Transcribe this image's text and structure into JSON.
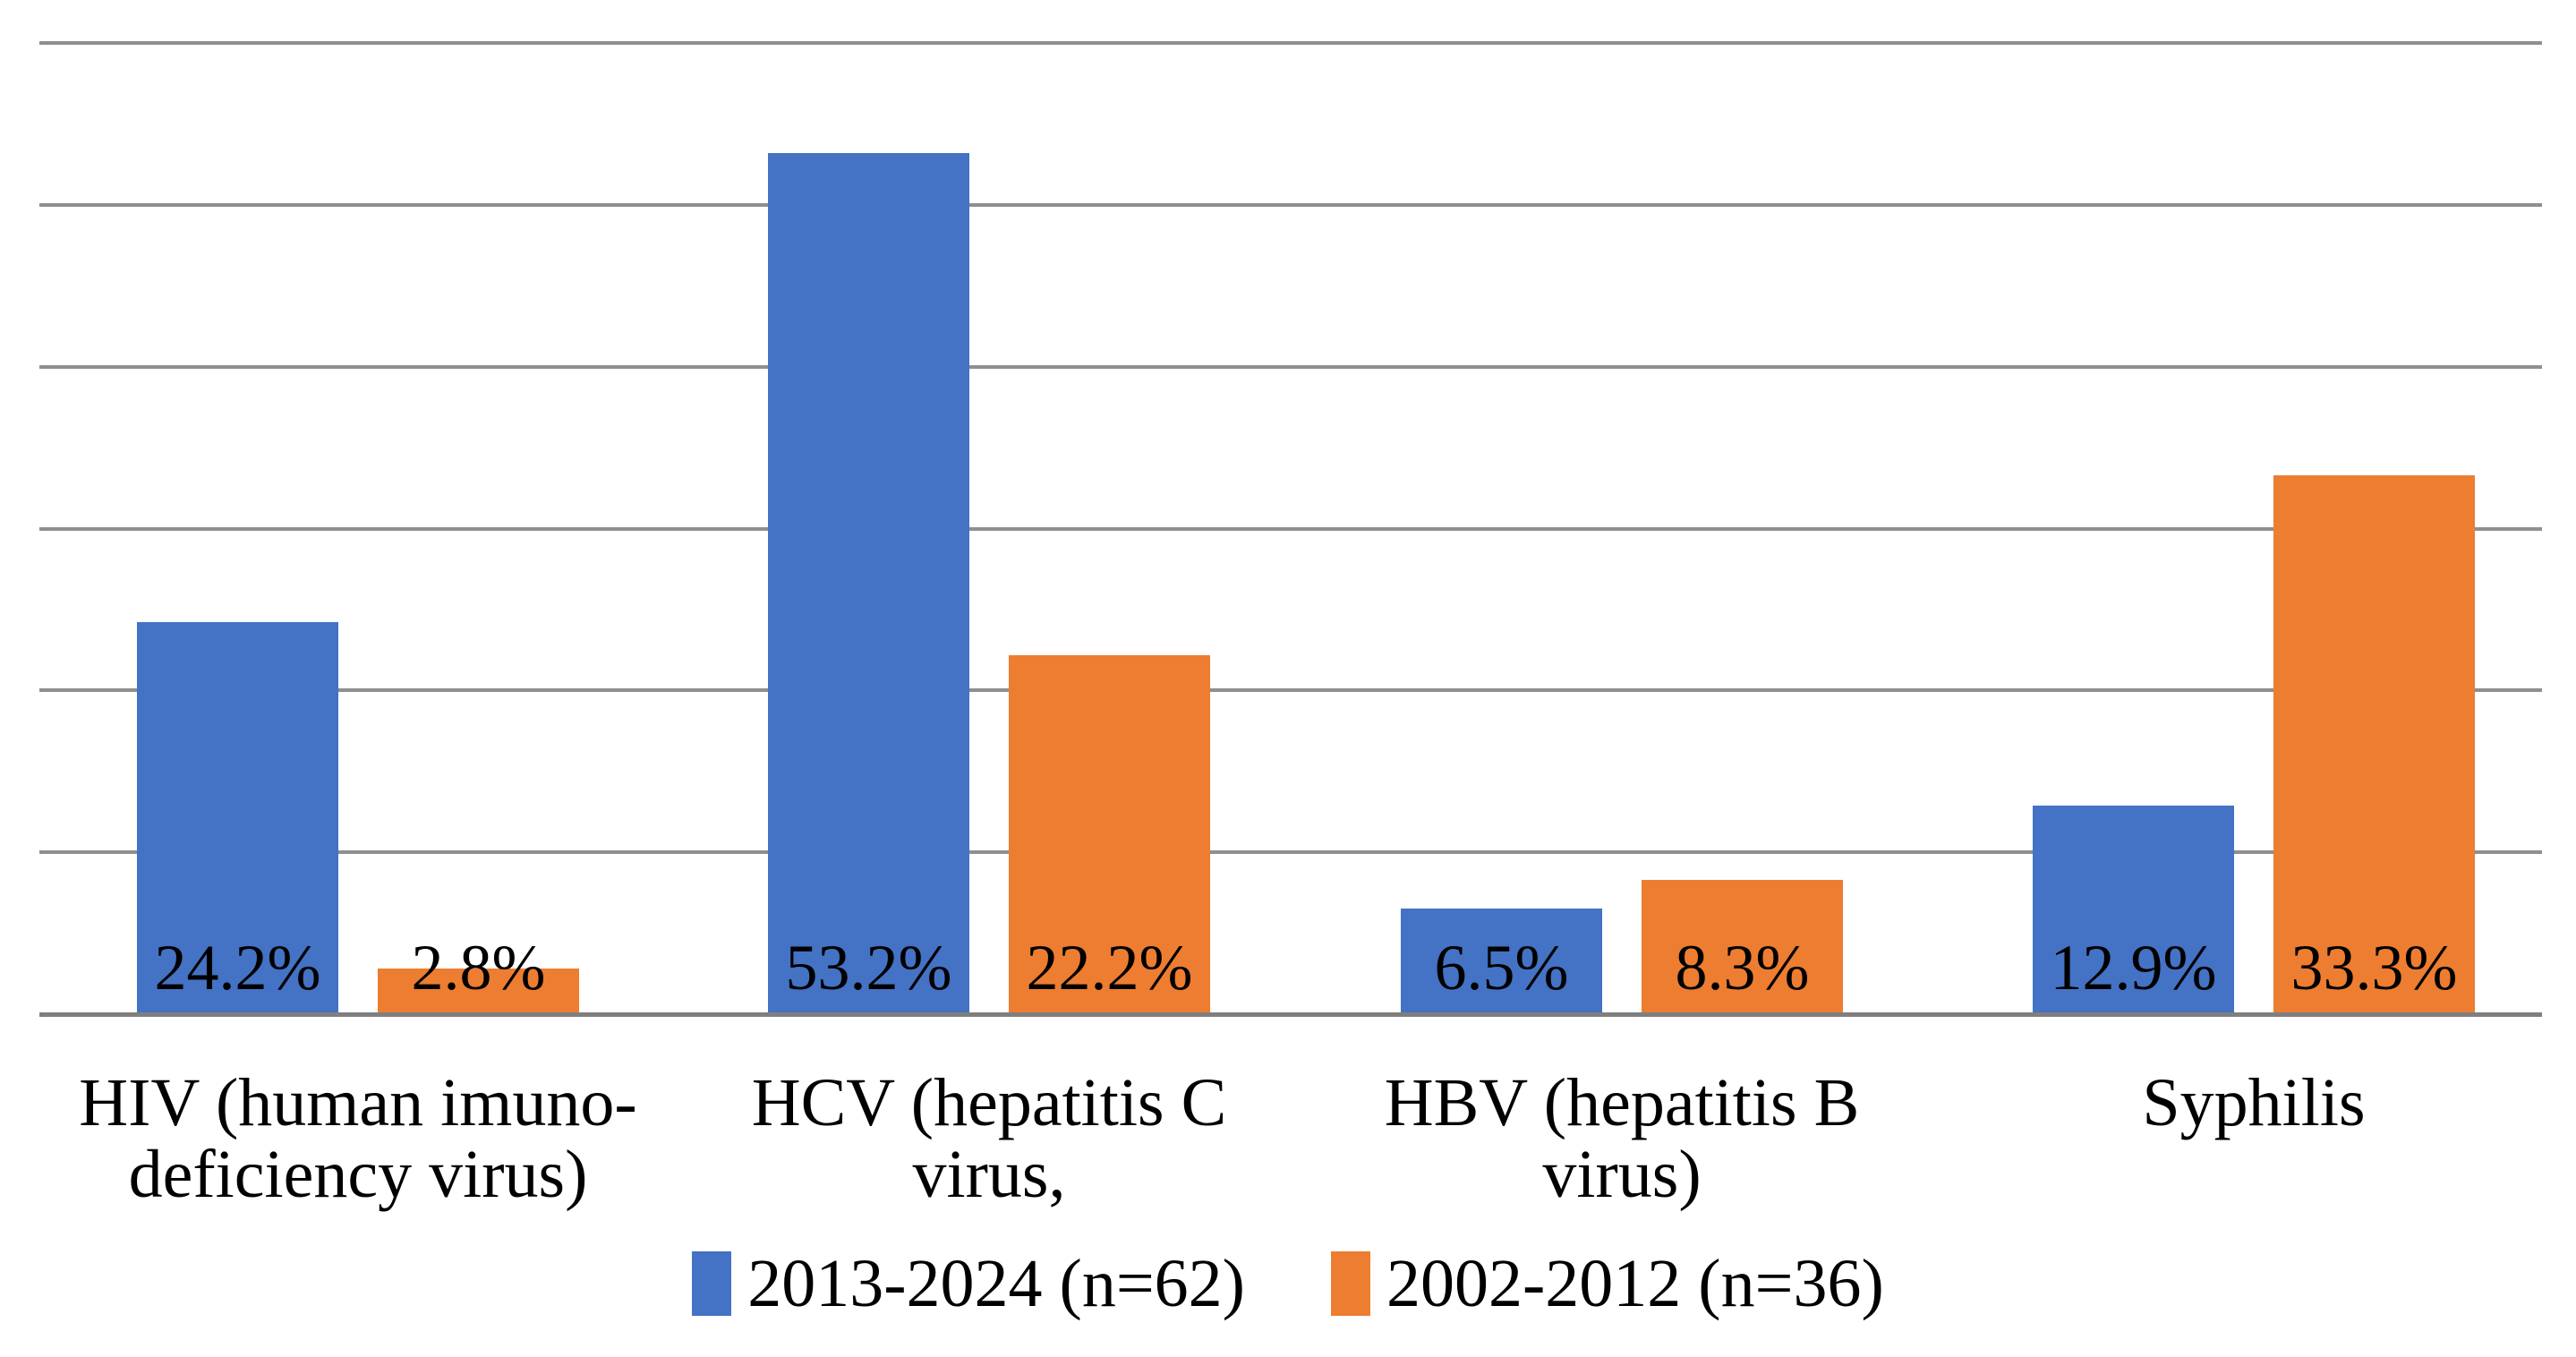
{
  "chart_data": {
    "type": "bar",
    "title": "",
    "categories": [
      "HIV (human imuno-deficiency virus)",
      "HCV (hepatitis C virus,",
      "HBV (hepatitis B virus)",
      "Syphilis"
    ],
    "category_label_lines": [
      [
        "HIV (human imuno-",
        "deficiency virus)"
      ],
      [
        "HCV (hepatitis C",
        "virus,"
      ],
      [
        "HBV (hepatitis B",
        "virus)"
      ],
      [
        "Syphilis"
      ]
    ],
    "series": [
      {
        "name": "2013-2024 (n=62)",
        "color": "#4472C4",
        "values": [
          24.2,
          53.2,
          6.5,
          12.9
        ],
        "data_labels": [
          "24.2%",
          "53.2%",
          "6.5%",
          "12.9%"
        ]
      },
      {
        "name": "2002-2012 (n=36)",
        "color": "#ED7D31",
        "values": [
          2.8,
          22.2,
          8.3,
          33.3
        ],
        "data_labels": [
          "2.8%",
          "22.2%",
          "8.3%",
          "33.3%"
        ]
      }
    ],
    "xlabel": "",
    "ylabel": "",
    "ylim": [
      0,
      60
    ],
    "gridline_interval": 10,
    "y_tick_labels_visible": false,
    "grid": true,
    "legend_position": "bottom",
    "colors": {
      "gridline": "#8F8F8F",
      "axis_line": "#7F7F7F",
      "data_label_text": "#000000",
      "background": "#FFFFFF"
    }
  }
}
